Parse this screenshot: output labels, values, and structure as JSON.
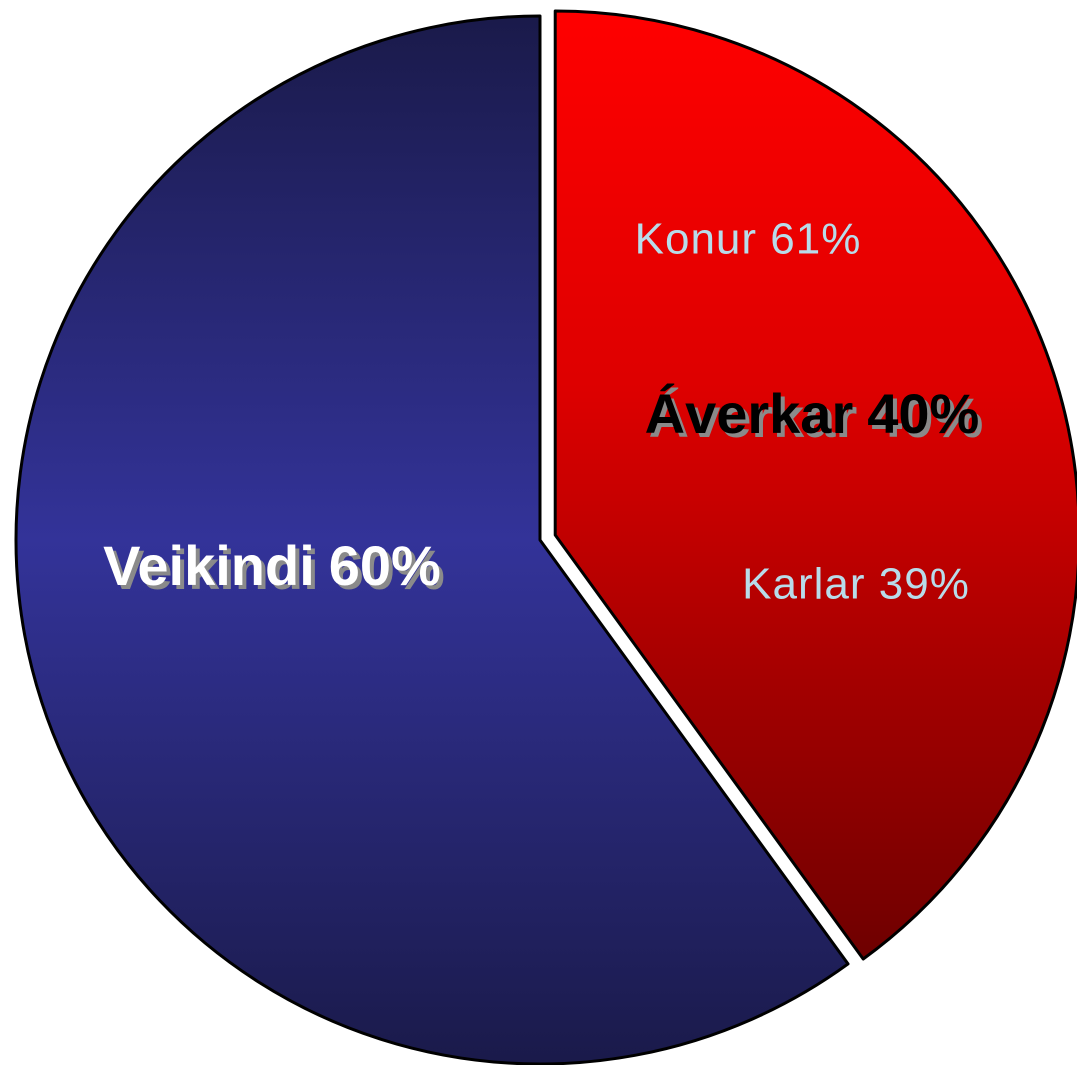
{
  "chart_data": {
    "type": "pie",
    "categories": [
      "Áverkar",
      "Veikindi"
    ],
    "values": [
      40,
      60
    ],
    "value_labels": [
      "40%",
      "60%"
    ],
    "colors": [
      "#ff0000",
      "#333399"
    ],
    "annotations": [
      "Konur 61%",
      "Karlar 39%"
    ]
  }
}
